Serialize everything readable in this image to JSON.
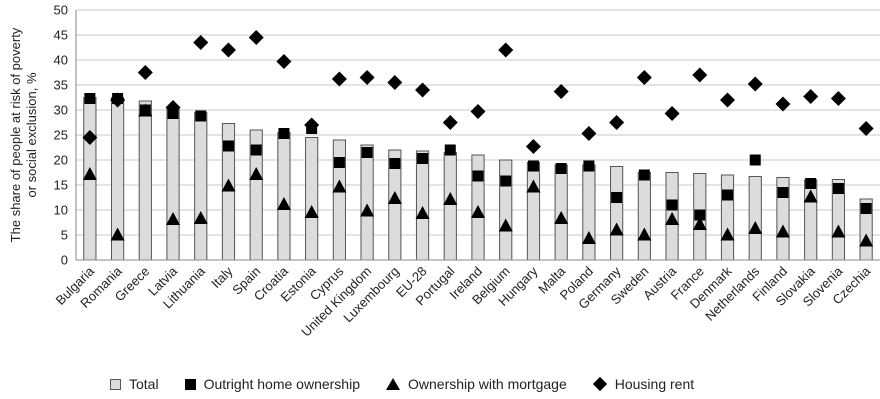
{
  "chart_data": {
    "type": "bar",
    "ylabel_lines": [
      "The share of people at risk of poverty",
      "or social exclusion, %"
    ],
    "ylim": [
      0,
      50
    ],
    "yticks": [
      "0",
      "5",
      "10",
      "15",
      "20",
      "25",
      "30",
      "35",
      "40",
      "45",
      "50"
    ],
    "categories": [
      "Bulgaria",
      "Romania",
      "Greece",
      "Latvia",
      "Lithuania",
      "Italy",
      "Spain",
      "Croatia",
      "Estonia",
      "Cyprus",
      "United Kingdom",
      "Luxembourg",
      "EU-28",
      "Portugal",
      "Ireland",
      "Belgium",
      "Hungary",
      "Malta",
      "Poland",
      "Germany",
      "Sweden",
      "Austria",
      "France",
      "Denmark",
      "Netherlands",
      "Finland",
      "Slovakia",
      "Slovenia",
      "Czechia"
    ],
    "series": [
      {
        "name": "Total",
        "marker": "bar",
        "values": [
          32.5,
          32.5,
          31.8,
          30.5,
          29.5,
          27.3,
          26.0,
          25.5,
          24.5,
          24.0,
          23.0,
          22.0,
          21.8,
          21.5,
          21.0,
          20.0,
          19.5,
          19.0,
          19.0,
          18.7,
          17.5,
          17.5,
          17.3,
          17.0,
          16.7,
          16.5,
          16.0,
          16.1,
          12.2
        ]
      },
      {
        "name": "Outright home ownership",
        "marker": "square",
        "values": [
          32.3,
          32.3,
          30.0,
          29.3,
          28.8,
          22.8,
          22.0,
          25.3,
          26.3,
          19.5,
          21.5,
          19.3,
          20.3,
          22.0,
          16.8,
          15.8,
          18.8,
          18.3,
          18.8,
          12.5,
          17.0,
          11.0,
          9.0,
          13.0,
          20.0,
          13.5,
          15.3,
          14.3,
          10.3
        ]
      },
      {
        "name": "Ownership with mortgage",
        "marker": "triangle",
        "values": [
          17.3,
          5.2,
          30.0,
          8.3,
          8.5,
          15.0,
          17.3,
          11.3,
          9.7,
          14.8,
          10.0,
          12.5,
          9.5,
          12.3,
          9.7,
          7.0,
          14.8,
          8.5,
          4.5,
          6.2,
          5.2,
          8.3,
          7.3,
          5.2,
          6.5,
          5.8,
          12.8,
          5.8,
          4.0
        ]
      },
      {
        "name": "Housing rent",
        "marker": "diamond",
        "values": [
          24.5,
          32.0,
          37.5,
          30.5,
          43.5,
          42.0,
          44.5,
          39.7,
          27.0,
          36.2,
          36.5,
          35.5,
          34.0,
          27.5,
          29.7,
          42.0,
          22.7,
          33.7,
          25.3,
          27.5,
          36.5,
          29.3,
          37.0,
          32.0,
          35.2,
          31.2,
          32.7,
          32.3,
          26.3
        ]
      }
    ],
    "colors": {
      "bar_fill": "#dcdcdc",
      "bar_stroke": "#555555",
      "marker": "#000000",
      "grid": "#c8c8c8"
    },
    "grid": true,
    "legend_position": "bottom"
  }
}
